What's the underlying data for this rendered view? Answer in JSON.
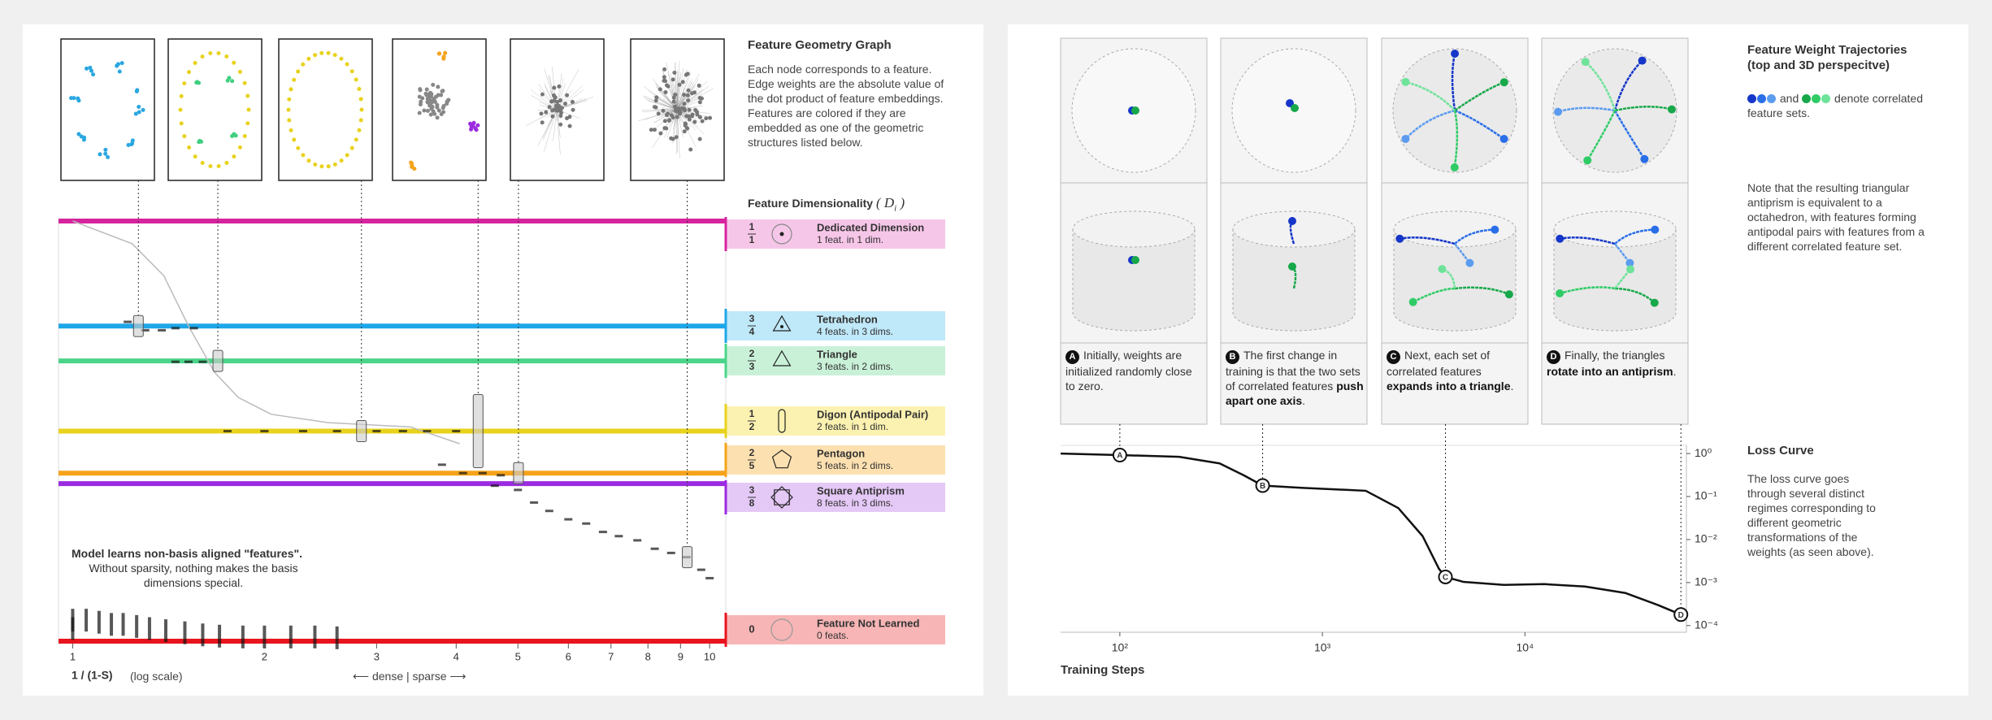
{
  "chart_data": [
    {
      "type": "scatter",
      "xlabel": "1 / (1-S)",
      "log_x": true,
      "xlim": [
        0.95,
        10.6
      ],
      "xticks": [
        1,
        2,
        3,
        4,
        5,
        6,
        7,
        8,
        9,
        10
      ],
      "ylim": [
        0,
        1
      ],
      "bands": [
        {
          "value": 1,
          "color": "#d6249f",
          "fill": "#f6c6e8",
          "num": "1",
          "den": "1",
          "name": "Dedicated Dimension",
          "desc": "1 feat. in 1 dim."
        },
        {
          "value": 0.75,
          "color": "#1ea7e8",
          "fill": "#bfe8f8",
          "num": "3",
          "den": "4",
          "name": "Tetrahedron",
          "desc": "4 feats. in 3 dims."
        },
        {
          "value": 0.667,
          "color": "#4bd58a",
          "fill": "#c9f1d8",
          "num": "2",
          "den": "3",
          "name": "Triangle",
          "desc": "3 feats. in 2 dims."
        },
        {
          "value": 0.5,
          "color": "#e8d21c",
          "fill": "#fbf1b0",
          "num": "1",
          "den": "2",
          "name": "Digon (Antipodal Pair)",
          "desc": "2 feats. in 1 dim."
        },
        {
          "value": 0.4,
          "color": "#f5a31a",
          "fill": "#fde0b0",
          "num": "2",
          "den": "5",
          "name": "Pentagon",
          "desc": "5 feats. in 2 dims."
        },
        {
          "value": 0.375,
          "color": "#9b2be0",
          "fill": "#e4c8f6",
          "num": "3",
          "den": "8",
          "name": "Square Antiprism",
          "desc": "8 feats. in 3 dims."
        },
        {
          "value": 0,
          "color": "#e8141e",
          "fill": "#f7b5b5",
          "num": "0",
          "den": null,
          "name": "Feature Not Learned",
          "desc": "0 feats."
        }
      ],
      "points": {
        "x": [
          1.0,
          1.0,
          1.05,
          1.1,
          1.15,
          1.2,
          1.26,
          1.32,
          1.4,
          1.5,
          1.6,
          1.7,
          1.85,
          2.0,
          2.2,
          2.4,
          2.6,
          1.22,
          1.3,
          1.38,
          1.45,
          1.55,
          1.45,
          1.52,
          1.6,
          1.75,
          2.0,
          2.3,
          2.6,
          3.0,
          3.3,
          3.6,
          4.0,
          3.8,
          4.1,
          4.4,
          4.7,
          4.6,
          5.0,
          5.3,
          5.6,
          6.0,
          6.4,
          6.8,
          7.2,
          7.7,
          8.2,
          8.7,
          9.2,
          9.7,
          10.0
        ],
        "y": [
          0.05,
          0.03,
          0.05,
          0.045,
          0.04,
          0.04,
          0.035,
          0.03,
          0.025,
          0.02,
          0.015,
          0.012,
          0.01,
          0.01,
          0.01,
          0.01,
          0.008,
          0.76,
          0.74,
          0.74,
          0.745,
          0.745,
          0.665,
          0.665,
          0.665,
          0.5,
          0.5,
          0.5,
          0.5,
          0.5,
          0.5,
          0.5,
          0.5,
          0.42,
          0.4,
          0.4,
          0.395,
          0.37,
          0.36,
          0.33,
          0.31,
          0.29,
          0.28,
          0.26,
          0.25,
          0.24,
          0.22,
          0.21,
          0.2,
          0.17,
          0.15
        ]
      },
      "curve": {
        "color": "#bbbbbb",
        "x": [
          1,
          1.24,
          1.39,
          1.52,
          1.67,
          1.82,
          2.05,
          2.52,
          3.39,
          4.05
        ],
        "y": [
          1,
          0.946,
          0.87,
          0.75,
          0.64,
          0.58,
          0.54,
          0.52,
          0.51,
          0.47
        ]
      },
      "highlights": {
        "x": [
          1.268,
          1.69,
          2.84,
          4.33,
          5.01,
          9.22
        ],
        "y": [
          0.75,
          0.667,
          0.5,
          0.5,
          0.4,
          0.2
        ]
      }
    },
    {
      "type": "line",
      "xlabel": "Training Steps",
      "log_x": true,
      "log_y": true,
      "xlim": [
        51,
        62700
      ],
      "ylim": [
        7e-05,
        1.55
      ],
      "xticks": [
        {
          "value": 100,
          "label": "10²"
        },
        {
          "value": 1000,
          "label": "10³"
        },
        {
          "value": 10000,
          "label": "10⁴"
        }
      ],
      "yticks": [
        {
          "value": 1,
          "label": "10⁰"
        },
        {
          "value": 0.1,
          "label": "10⁻¹"
        },
        {
          "value": 0.01,
          "label": "10⁻²"
        },
        {
          "value": 0.001,
          "label": "10⁻³"
        },
        {
          "value": 0.0001,
          "label": "10⁻⁴"
        }
      ],
      "color": "#111111",
      "x": [
        51,
        100,
        196,
        311,
        410,
        507,
        783,
        1637,
        2370,
        3126,
        3760,
        4050,
        4955,
        7870,
        12470,
        19800,
        31400,
        45400,
        58900
      ],
      "values": [
        1.0,
        0.92,
        0.84,
        0.59,
        0.31,
        0.18,
        0.16,
        0.136,
        0.054,
        0.012,
        0.0021,
        0.00135,
        0.00104,
        0.00088,
        0.00092,
        0.00081,
        0.00057,
        0.0003,
        0.00018
      ],
      "markers": {
        "labels": [
          "A",
          "B",
          "C",
          "D"
        ],
        "x": [
          100,
          507,
          4050,
          58900
        ],
        "y": [
          0.92,
          0.18,
          0.00135,
          0.00018
        ]
      }
    }
  ],
  "left_panel": {
    "graph_title": "Feature Geometry Graph",
    "graph_text": "Each node corresponds to a feature. Edge weights are the absolute value of the dot product of feature embeddings. Features are colored if they are embedded as one of the geometric structures listed below.",
    "dim_title": "Feature Dimensionality",
    "dim_symbol": "D",
    "dim_sub": "i",
    "annotation_bold": "Model learns non-basis aligned \"features\".",
    "annotation_text": "Without sparsity, nothing makes the basis dimensions special.",
    "x_scale_note": "(log scale)",
    "direction": "⟵ dense | sparse ⟶"
  },
  "right_panel": {
    "traj_title": "Feature Weight Trajectories",
    "traj_subtitle": "(top and 3D perspecitve)",
    "legend_and": "and",
    "legend_text": "denote correlated feature sets.",
    "note": "Note that the resulting triangular antiprism is equivalent to a octahedron, with features forming antipodal pairs with features from a different correlated feature set.",
    "loss_title": "Loss Curve",
    "loss_text": "The loss curve goes through several distinct regimes corresponding to different geometric transformations of the weights (as seen above).",
    "captions": [
      {
        "letter": "A",
        "parts": [
          "Initially, weights are initialized randomly close to zero."
        ]
      },
      {
        "letter": "B",
        "parts": [
          "The first change in training is that the two sets of correlated features ",
          "push apart one axis",
          "."
        ]
      },
      {
        "letter": "C",
        "parts": [
          "Next, each set of correlated features ",
          "expands into a triangle",
          "."
        ]
      },
      {
        "letter": "D",
        "parts": [
          "Finally, the triangles ",
          "rotate into an antiprism",
          "."
        ]
      }
    ]
  }
}
